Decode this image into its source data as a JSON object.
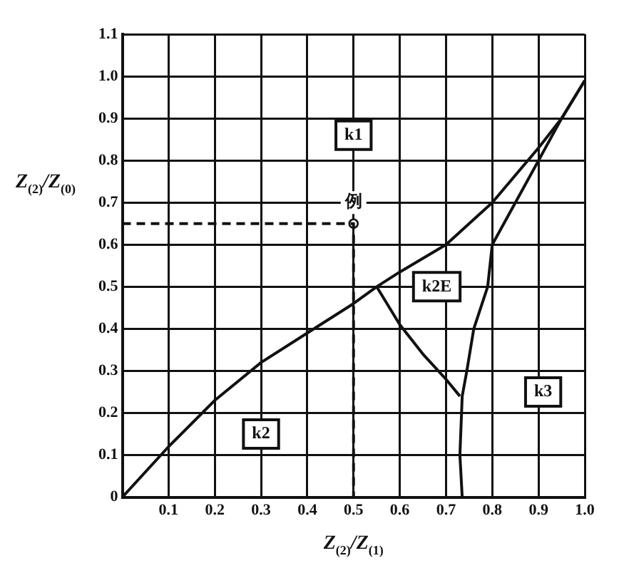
{
  "chart_data": {
    "type": "line",
    "xlabel": "Z$_{(2)}$/Z$_{(1)}$",
    "ylabel": "Z$_{(2)}$/Z$_{(0)}$",
    "xlim": [
      0,
      1
    ],
    "ylim": [
      0,
      1.1
    ],
    "xticks": [
      {
        "value": 0,
        "label": null
      },
      0.1,
      0.2,
      0.3,
      0.4,
      0.5,
      0.6,
      0.7,
      0.8,
      0.9,
      {
        "value": 1,
        "label": "1.0"
      }
    ],
    "yticks": [
      0,
      0.1,
      0.2,
      0.3,
      0.4,
      0.5,
      0.6,
      0.7,
      0.8,
      0.9,
      {
        "value": 1,
        "label": "1.0"
      },
      1.1
    ],
    "grid": true,
    "marker": "none",
    "line_style": "solid",
    "series": [
      {
        "color": "#111111",
        "x": [
          0,
          0.1,
          0.2,
          0.3,
          0.4,
          0.5,
          0.55,
          0.6,
          0.7,
          0.8,
          0.9,
          0.95,
          1.0
        ],
        "values": [
          0,
          0.12,
          0.23,
          0.32,
          0.39,
          0.46,
          0.5,
          0.535,
          0.6,
          0.7,
          0.83,
          0.9,
          0.99
        ]
      },
      {
        "color": "#111111",
        "x": [
          0.55,
          0.6,
          0.65,
          0.7,
          0.73
        ],
        "values": [
          0.5,
          0.41,
          0.34,
          0.28,
          0.24
        ]
      },
      {
        "color": "#111111",
        "x": [
          0.735,
          0.73,
          0.735,
          0.745,
          0.76,
          0.79,
          0.8,
          0.85,
          0.9,
          0.95,
          1.0
        ],
        "values": [
          0,
          0.1,
          0.24,
          0.3,
          0.4,
          0.5,
          0.6,
          0.7,
          0.8,
          0.9,
          0.99
        ]
      },
      {
        "color": "#111111",
        "line_style": "dashed",
        "x": [
          0,
          0.5,
          0.5
        ],
        "values": [
          0.65,
          0.65,
          0
        ]
      },
      {
        "type": "scatter",
        "marker": "circle",
        "color": "#111111",
        "x": [
          0.5
        ],
        "values": [
          0.65
        ]
      }
    ],
    "annotations": [
      {
        "text": "k1",
        "x": 0.5,
        "y": 0.86
      },
      {
        "text": "例",
        "x": 0.5,
        "y": 0.7
      },
      {
        "text": "k2",
        "x": 0.3,
        "y": 0.15
      },
      {
        "text": "k2E",
        "x": 0.68,
        "y": 0.5
      },
      {
        "text": "k3",
        "x": 0.91,
        "y": 0.25
      }
    ]
  }
}
